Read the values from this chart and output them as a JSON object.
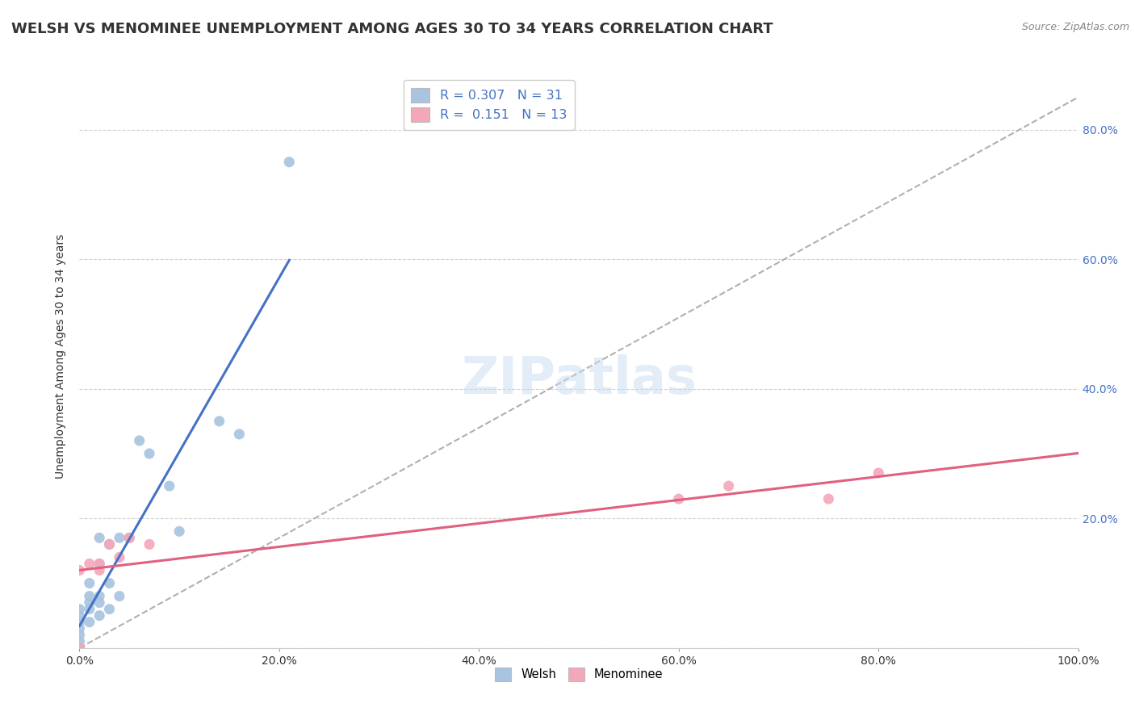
{
  "title": "WELSH VS MENOMINEE UNEMPLOYMENT AMONG AGES 30 TO 34 YEARS CORRELATION CHART",
  "source": "Source: ZipAtlas.com",
  "ylabel": "Unemployment Among Ages 30 to 34 years",
  "xlim": [
    0.0,
    1.0
  ],
  "ylim": [
    0.0,
    0.9
  ],
  "xticks": [
    0.0,
    0.2,
    0.4,
    0.6,
    0.8,
    1.0
  ],
  "yticks": [
    0.0,
    0.2,
    0.4,
    0.6,
    0.8
  ],
  "xtick_labels": [
    "0.0%",
    "20.0%",
    "40.0%",
    "60.0%",
    "80.0%",
    "100.0%"
  ],
  "right_ytick_labels": [
    "",
    "20.0%",
    "40.0%",
    "60.0%",
    "80.0%"
  ],
  "welsh_r": "0.307",
  "welsh_n": "31",
  "menominee_r": "0.151",
  "menominee_n": "13",
  "welsh_color": "#a8c4e0",
  "menominee_color": "#f4a7b9",
  "welsh_line_color": "#4472c4",
  "menominee_line_color": "#e06080",
  "trendline_color": "#b0b0b0",
  "watermark": "ZIPatlas",
  "welsh_x": [
    0.0,
    0.0,
    0.0,
    0.0,
    0.0,
    0.0,
    0.0,
    0.0,
    0.01,
    0.01,
    0.01,
    0.01,
    0.01,
    0.02,
    0.02,
    0.02,
    0.02,
    0.02,
    0.03,
    0.03,
    0.03,
    0.04,
    0.04,
    0.05,
    0.06,
    0.07,
    0.09,
    0.1,
    0.14,
    0.16,
    0.21
  ],
  "welsh_y": [
    0.0,
    0.0,
    0.01,
    0.02,
    0.03,
    0.04,
    0.05,
    0.06,
    0.04,
    0.06,
    0.07,
    0.08,
    0.1,
    0.05,
    0.07,
    0.08,
    0.13,
    0.17,
    0.06,
    0.1,
    0.16,
    0.08,
    0.17,
    0.17,
    0.32,
    0.3,
    0.25,
    0.18,
    0.35,
    0.33,
    0.75
  ],
  "menominee_x": [
    0.0,
    0.0,
    0.01,
    0.02,
    0.02,
    0.03,
    0.04,
    0.05,
    0.07,
    0.6,
    0.65,
    0.75,
    0.8
  ],
  "menominee_y": [
    0.0,
    0.12,
    0.13,
    0.12,
    0.13,
    0.16,
    0.14,
    0.17,
    0.16,
    0.23,
    0.25,
    0.23,
    0.27
  ],
  "legend_labels": [
    "Welsh",
    "Menominee"
  ],
  "background_color": "#ffffff",
  "grid_color": "#cccccc",
  "title_fontsize": 13,
  "axis_label_fontsize": 10,
  "tick_fontsize": 10,
  "right_tick_color": "#4472c4",
  "legend_text_color": "#4472c4"
}
